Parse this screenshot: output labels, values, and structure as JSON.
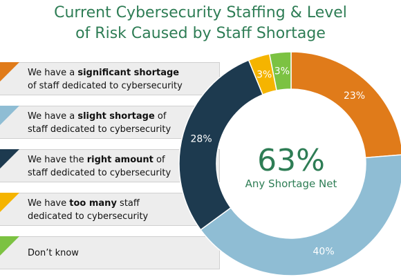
{
  "title": {
    "line1": "Current Cybersecurity Staffing & Level",
    "line2": "of Risk Caused by Staff Shortage"
  },
  "legend": [
    {
      "pre": "We have a ",
      "bold": "significant shortage",
      "post": "",
      "line2": "of staff dedicated to cybersecurity",
      "color": "#e07b1a"
    },
    {
      "pre": "We have a ",
      "bold": "slight shortage",
      "post": " of",
      "line2": "staff dedicated to cybersecurity",
      "color": "#8fbdd4"
    },
    {
      "pre": "We have the ",
      "bold": "right amount",
      "post": " of",
      "line2": "staff dedicated to cybersecurity",
      "color": "#1d3a4f"
    },
    {
      "pre": "We have ",
      "bold": "too many",
      "post": " staff",
      "line2": "dedicated to cybersecurity",
      "color": "#f5b400"
    },
    {
      "pre": "Don’t know",
      "bold": "",
      "post": "",
      "line2": "",
      "color": "#7cc242"
    }
  ],
  "center": {
    "value": "63%",
    "label": "Any Shortage Net"
  },
  "chart_data": {
    "type": "pie",
    "donut": true,
    "categories": [
      "Significant shortage",
      "Slight shortage",
      "Right amount",
      "Too many",
      "Don’t know"
    ],
    "values": [
      23,
      40,
      28,
      3,
      3
    ],
    "labels": [
      "23%",
      "40%",
      "28%",
      "3%",
      "3%"
    ],
    "colors": [
      "#e07b1a",
      "#8fbdd4",
      "#1d3a4f",
      "#f5b400",
      "#7cc242"
    ]
  }
}
